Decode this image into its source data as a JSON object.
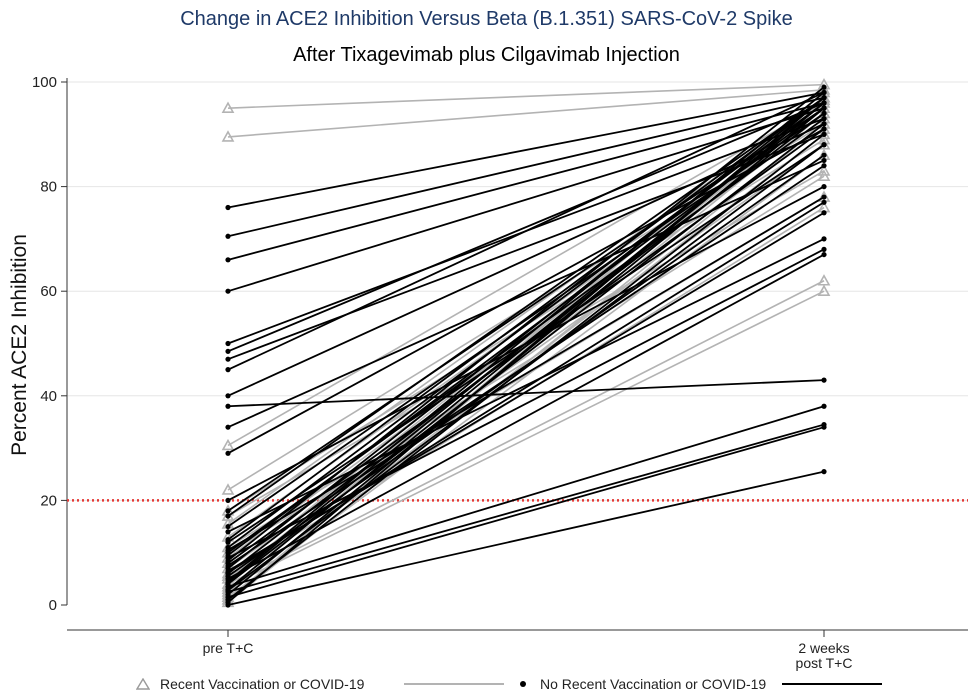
{
  "chart_data": {
    "type": "line",
    "title": "Change in ACE2 Inhibition Versus Beta (B.1.351) SARS-CoV-2 Spike",
    "subtitle": "After Tixagevimab plus Cilgavimab Injection",
    "ylabel": "Percent ACE2 Inhibition",
    "ylim": [
      0,
      100
    ],
    "yticks": [
      0,
      20,
      40,
      60,
      80,
      100
    ],
    "categories": [
      "pre T+C",
      "2 weeks\npost T+C"
    ],
    "reference_line": {
      "y": 20,
      "color": "#e53935",
      "style": "dotted"
    },
    "grid": true,
    "legend_position": "bottom",
    "series": [
      {
        "name": "Recent Vaccination or COVID-19",
        "marker": "triangle",
        "color": "#b3b3b3",
        "pairs": [
          [
            95,
            99.5
          ],
          [
            89.5,
            98.5
          ],
          [
            30.5,
            96
          ],
          [
            22,
            92
          ],
          [
            18,
            89
          ],
          [
            17,
            83
          ],
          [
            15.5,
            96.5
          ],
          [
            13,
            94
          ],
          [
            11,
            82
          ],
          [
            10,
            78
          ],
          [
            9,
            93
          ],
          [
            8,
            91
          ],
          [
            7,
            88
          ],
          [
            6,
            97
          ],
          [
            5.5,
            76
          ],
          [
            5,
            95
          ],
          [
            4,
            62
          ],
          [
            3.5,
            60
          ],
          [
            3,
            98
          ],
          [
            2.5,
            90
          ],
          [
            2,
            94
          ],
          [
            1.5,
            86
          ],
          [
            1,
            97
          ],
          [
            0.5,
            92
          ]
        ]
      },
      {
        "name": "No Recent Vaccination or COVID-19",
        "marker": "dot",
        "color": "#000000",
        "pairs": [
          [
            76,
            98
          ],
          [
            70.5,
            97
          ],
          [
            66,
            96
          ],
          [
            60,
            95
          ],
          [
            50,
            93
          ],
          [
            48.5,
            96
          ],
          [
            47,
            90
          ],
          [
            45,
            98
          ],
          [
            40,
            92
          ],
          [
            38,
            43
          ],
          [
            34,
            85
          ],
          [
            29,
            91
          ],
          [
            20,
            80
          ],
          [
            17,
            97
          ],
          [
            15,
            94
          ],
          [
            14,
            70
          ],
          [
            12,
            88
          ],
          [
            11,
            96
          ],
          [
            10.5,
            78
          ],
          [
            10,
            93
          ],
          [
            9.5,
            95
          ],
          [
            9,
            68
          ],
          [
            8.5,
            99
          ],
          [
            8,
            91
          ],
          [
            7.5,
            84
          ],
          [
            7,
            97
          ],
          [
            6.5,
            75
          ],
          [
            6,
            94
          ],
          [
            5.5,
            86
          ],
          [
            5,
            67
          ],
          [
            4.5,
            98
          ],
          [
            4,
            92
          ],
          [
            3.5,
            38
          ],
          [
            3,
            96
          ],
          [
            2.5,
            34.5
          ],
          [
            2,
            95
          ],
          [
            1.5,
            34
          ],
          [
            1,
            90
          ],
          [
            0.5,
            97
          ],
          [
            0,
            25.5
          ],
          [
            2.8,
            88
          ],
          [
            4.2,
            96
          ],
          [
            6.2,
            77
          ],
          [
            12.5,
            97
          ],
          [
            18,
            95
          ]
        ]
      }
    ]
  }
}
